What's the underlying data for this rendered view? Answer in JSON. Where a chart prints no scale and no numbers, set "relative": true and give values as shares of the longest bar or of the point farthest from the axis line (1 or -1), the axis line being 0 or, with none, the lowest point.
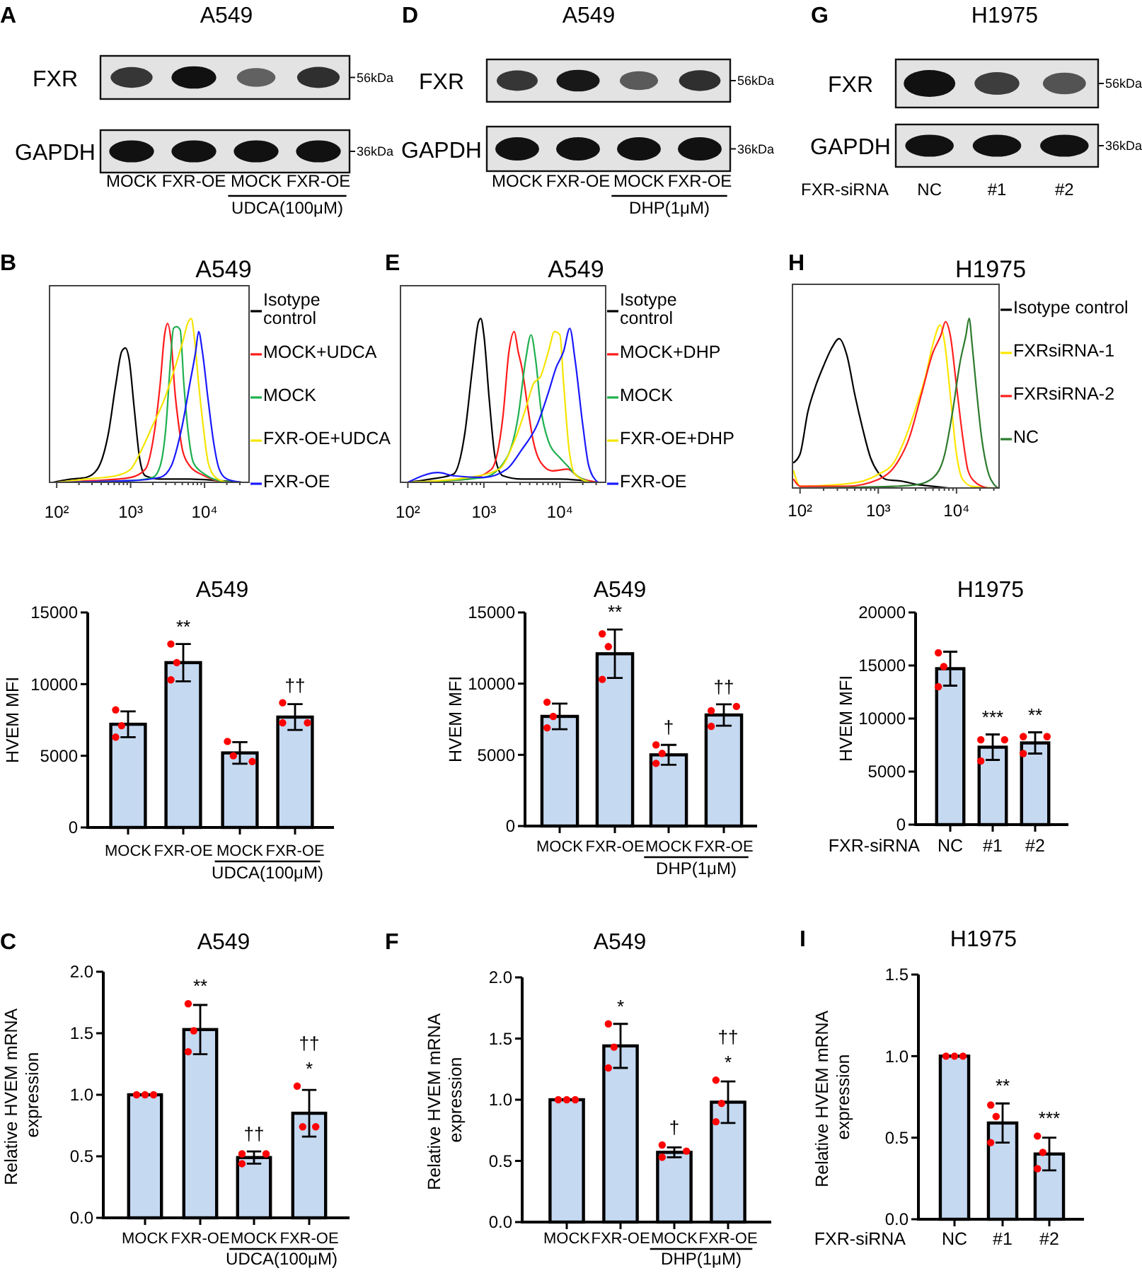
{
  "chart_data": [
    {
      "type": "other",
      "title": "A549",
      "categories": [
        "MOCK",
        "FXR-OE",
        "MOCK",
        "FXR-OE"
      ],
      "y_categories": [
        "FXR",
        "GAPDH"
      ],
      "y2_categories": [
        "56kDa",
        "36kDa"
      ],
      "annotations": [
        "A",
        "UDCA(100μM)"
      ]
    },
    {
      "type": "other",
      "title": "A549",
      "categories": [
        "MOCK",
        "FXR-OE",
        "MOCK",
        "FXR-OE"
      ],
      "y_categories": [
        "FXR",
        "GAPDH"
      ],
      "y2_categories": [
        "56kDa",
        "36kDa"
      ],
      "annotations": [
        "D",
        "DHP(1μM)"
      ]
    },
    {
      "type": "other",
      "title": "H1975",
      "xlabel": "FXR-siRNA",
      "categories": [
        "NC",
        "#1",
        "#2"
      ],
      "y_categories": [
        "FXR",
        "GAPDH"
      ],
      "y2_categories": [
        "56kDa",
        "36kDa"
      ],
      "annotations": [
        "G"
      ]
    },
    {
      "type": "line",
      "title": "A549",
      "relative": true,
      "log": "x",
      "xlim": [
        80,
        40000
      ],
      "xticks": [
        {
          "value": 100,
          "label": "10²"
        },
        {
          "value": 200,
          "label": null
        },
        {
          "value": 300,
          "label": null
        },
        {
          "value": 400,
          "label": null
        },
        {
          "value": 500,
          "label": null
        },
        {
          "value": 600,
          "label": null
        },
        {
          "value": 700,
          "label": null
        },
        {
          "value": 800,
          "label": null
        },
        {
          "value": 900,
          "label": null
        },
        {
          "value": 1000,
          "label": "10³"
        },
        {
          "value": 2000,
          "label": null
        },
        {
          "value": 3000,
          "label": null
        },
        {
          "value": 4000,
          "label": null
        },
        {
          "value": 5000,
          "label": null
        },
        {
          "value": 6000,
          "label": null
        },
        {
          "value": 7000,
          "label": null
        },
        {
          "value": 8000,
          "label": null
        },
        {
          "value": 9000,
          "label": null
        },
        {
          "value": 10000,
          "label": "10⁴"
        },
        {
          "value": 20000,
          "label": null
        },
        {
          "value": 30000,
          "label": null
        }
      ],
      "legend": "right",
      "annotations": [
        "B"
      ],
      "series": [
        {
          "name": "Isotype control",
          "color": "#000000",
          "x": [
            89,
            158,
            251,
            355,
            501,
            631,
            759,
            851,
            955,
            1120,
            1320,
            1580,
            2510,
            6310,
            15800,
            31600
          ],
          "values": [
            0,
            0.02,
            0.03,
            0.08,
            0.3,
            0.6,
            0.8,
            0.82,
            0.75,
            0.45,
            0.15,
            0.04,
            0.02,
            0.02,
            0.01,
            0
          ]
        },
        {
          "name": "MOCK+UDCA",
          "color": "#ff1a1a",
          "x": [
            100,
            316,
            1000,
            1580,
            2000,
            2510,
            2880,
            3160,
            3550,
            3980,
            4470,
            5010,
            6310,
            8910,
            12600,
            20000
          ],
          "values": [
            0,
            0.01,
            0.03,
            0.08,
            0.25,
            0.6,
            0.9,
            0.97,
            0.85,
            0.55,
            0.35,
            0.2,
            0.1,
            0.05,
            0.02,
            0
          ]
        },
        {
          "name": "MOCK",
          "color": "#1fb050",
          "x": [
            100,
            1000,
            2000,
            2510,
            3020,
            3470,
            3800,
            4170,
            4680,
            5250,
            6030,
            7080,
            10000,
            15800,
            25100
          ],
          "values": [
            0,
            0.01,
            0.03,
            0.1,
            0.35,
            0.75,
            0.94,
            0.95,
            0.93,
            0.6,
            0.3,
            0.12,
            0.05,
            0.01,
            0
          ]
        },
        {
          "name": "FXR-OE+UDCA",
          "color": "#f5e400",
          "x": [
            100,
            251,
            631,
            1000,
            1410,
            2000,
            2820,
            3980,
            5010,
            6030,
            6610,
            7410,
            8320,
            9550,
            11200,
            14100,
            20000
          ],
          "values": [
            0,
            0.02,
            0.04,
            0.08,
            0.2,
            0.35,
            0.5,
            0.7,
            0.85,
            0.98,
            1,
            0.85,
            0.6,
            0.35,
            0.12,
            0.03,
            0
          ]
        },
        {
          "name": "FXR-OE",
          "color": "#1a1aff",
          "x": [
            100,
            1000,
            2510,
            3550,
            4470,
            5010,
            6310,
            7590,
            8320,
            9330,
            11200,
            13200,
            15800,
            20000,
            31600
          ],
          "values": [
            0,
            0.01,
            0.03,
            0.1,
            0.25,
            0.35,
            0.6,
            0.8,
            0.92,
            0.8,
            0.5,
            0.25,
            0.08,
            0.02,
            0
          ]
        }
      ]
    },
    {
      "type": "line",
      "title": "A549",
      "relative": true,
      "log": "x",
      "xlim": [
        80,
        40000
      ],
      "xticks": [
        {
          "value": 100,
          "label": "10²"
        },
        {
          "value": 200,
          "label": null
        },
        {
          "value": 300,
          "label": null
        },
        {
          "value": 400,
          "label": null
        },
        {
          "value": 500,
          "label": null
        },
        {
          "value": 600,
          "label": null
        },
        {
          "value": 700,
          "label": null
        },
        {
          "value": 800,
          "label": null
        },
        {
          "value": 900,
          "label": null
        },
        {
          "value": 1000,
          "label": "10³"
        },
        {
          "value": 2000,
          "label": null
        },
        {
          "value": 3000,
          "label": null
        },
        {
          "value": 4000,
          "label": null
        },
        {
          "value": 5000,
          "label": null
        },
        {
          "value": 6000,
          "label": null
        },
        {
          "value": 7000,
          "label": null
        },
        {
          "value": 8000,
          "label": null
        },
        {
          "value": 9000,
          "label": null
        },
        {
          "value": 10000,
          "label": "10⁴"
        },
        {
          "value": 20000,
          "label": null
        },
        {
          "value": 30000,
          "label": null
        }
      ],
      "legend": "right",
      "annotations": [
        "E"
      ],
      "series": [
        {
          "name": "Isotype control",
          "color": "#000000",
          "x": [
            100,
            200,
            398,
            562,
            708,
            851,
            912,
            1000,
            1180,
            1410,
            1780,
            3160,
            10000,
            31600
          ],
          "values": [
            0,
            0.02,
            0.05,
            0.3,
            0.7,
            0.98,
            1,
            0.9,
            0.5,
            0.15,
            0.04,
            0.02,
            0.02,
            0
          ]
        },
        {
          "name": "MOCK+DHP",
          "color": "#ff1a1a",
          "x": [
            100,
            631,
            1260,
            1780,
            2140,
            2510,
            2820,
            3160,
            3800,
            4470,
            5620,
            7940,
            12600,
            17800,
            31600
          ],
          "values": [
            0,
            0.02,
            0.08,
            0.4,
            0.8,
            0.92,
            0.8,
            0.7,
            0.45,
            0.25,
            0.12,
            0.07,
            0.08,
            0.03,
            0
          ]
        },
        {
          "name": "MOCK",
          "color": "#1fb050",
          "x": [
            100,
            1000,
            2000,
            2820,
            3550,
            4170,
            4790,
            5620,
            7080,
            10000,
            12600,
            15800,
            25100
          ],
          "values": [
            0,
            0.03,
            0.15,
            0.4,
            0.75,
            0.9,
            0.75,
            0.45,
            0.25,
            0.15,
            0.1,
            0.05,
            0
          ]
        },
        {
          "name": "FXR-OE+DHP",
          "color": "#f5e400",
          "x": [
            100,
            631,
            1580,
            2510,
            3550,
            4470,
            5620,
            7080,
            8510,
            10000,
            11200,
            13200,
            15800,
            25100
          ],
          "values": [
            0,
            0.03,
            0.08,
            0.25,
            0.45,
            0.6,
            0.65,
            0.8,
            0.92,
            0.9,
            0.6,
            0.2,
            0.05,
            0
          ]
        },
        {
          "name": "FXR-OE",
          "color": "#1a1aff",
          "x": [
            100,
            251,
            398,
            1000,
            2000,
            3160,
            5010,
            7080,
            8910,
            11200,
            13500,
            15800,
            20000,
            24000,
            31600
          ],
          "values": [
            0,
            0.06,
            0.04,
            0.03,
            0.08,
            0.2,
            0.35,
            0.55,
            0.7,
            0.8,
            0.94,
            0.75,
            0.35,
            0.1,
            0
          ]
        }
      ]
    },
    {
      "type": "line",
      "title": "H1975",
      "relative": true,
      "log": "x",
      "xlim": [
        80,
        35000
      ],
      "xticks": [
        {
          "value": 100,
          "label": "10²"
        },
        {
          "value": 200,
          "label": null
        },
        {
          "value": 300,
          "label": null
        },
        {
          "value": 400,
          "label": null
        },
        {
          "value": 500,
          "label": null
        },
        {
          "value": 600,
          "label": null
        },
        {
          "value": 700,
          "label": null
        },
        {
          "value": 800,
          "label": null
        },
        {
          "value": 900,
          "label": null
        },
        {
          "value": 1000,
          "label": "10³"
        },
        {
          "value": 2000,
          "label": null
        },
        {
          "value": 3000,
          "label": null
        },
        {
          "value": 4000,
          "label": null
        },
        {
          "value": 5000,
          "label": null
        },
        {
          "value": 6000,
          "label": null
        },
        {
          "value": 7000,
          "label": null
        },
        {
          "value": 8000,
          "label": null
        },
        {
          "value": 9000,
          "label": null
        },
        {
          "value": 10000,
          "label": "10⁴"
        },
        {
          "value": 20000,
          "label": null
        },
        {
          "value": 30000,
          "label": null
        }
      ],
      "legend": "right",
      "annotations": [
        "H"
      ],
      "series": [
        {
          "name": "Isotype control",
          "color": "#000000",
          "x": [
            83,
            100,
            126,
            158,
            200,
            251,
            316,
            398,
            501,
            631,
            794,
            1000,
            1260,
            2000,
            3160,
            5010,
            7940
          ],
          "values": [
            0.15,
            0.2,
            0.45,
            0.6,
            0.72,
            0.82,
            0.88,
            0.78,
            0.55,
            0.35,
            0.18,
            0.09,
            0.05,
            0.04,
            0.02,
            0.01,
            0
          ]
        },
        {
          "name": "FXRsiRNA-1",
          "color": "#ffe600",
          "x": [
            83,
            100,
            316,
            631,
            1000,
            1580,
            2240,
            3160,
            3980,
            5010,
            6170,
            7080,
            8320,
            10000,
            12000,
            15800,
            31600
          ],
          "values": [
            0.1,
            0.01,
            0.02,
            0.04,
            0.08,
            0.15,
            0.3,
            0.5,
            0.65,
            0.85,
            0.96,
            0.85,
            0.55,
            0.2,
            0.05,
            0.01,
            0
          ]
        },
        {
          "name": "FXRsiRNA-2",
          "color": "#ff2020",
          "x": [
            83,
            100,
            398,
            1000,
            1580,
            2510,
            3550,
            5010,
            6310,
            7240,
            8320,
            10000,
            12000,
            14100,
            17800,
            25100
          ],
          "values": [
            0.05,
            0.01,
            0.01,
            0.05,
            0.12,
            0.3,
            0.55,
            0.8,
            0.9,
            0.98,
            0.9,
            0.6,
            0.3,
            0.1,
            0.03,
            0
          ]
        },
        {
          "name": "NC",
          "color": "#2d7a2d",
          "x": [
            100,
            1580,
            3160,
            5010,
            7080,
            8910,
            11200,
            13200,
            14500,
            15800,
            17800,
            20900,
            25100,
            30200,
            33900
          ],
          "values": [
            0,
            0.01,
            0.02,
            0.06,
            0.2,
            0.45,
            0.75,
            0.9,
            1,
            0.85,
            0.6,
            0.3,
            0.1,
            0.02,
            0
          ]
        }
      ]
    },
    {
      "type": "bar",
      "title": "A549",
      "ylabel": "HVEM MFI",
      "categories": [
        "MOCK",
        "FXR-OE",
        "MOCK",
        "FXR-OE"
      ],
      "ylim": [
        0,
        15000
      ],
      "yticks": [
        0,
        5000,
        10000,
        15000
      ],
      "annotations": [
        "**",
        "††",
        "UDCA(100μM)"
      ],
      "series": [
        {
          "color": "#c5d9f1",
          "values": [
            7200,
            11500,
            5200,
            7700
          ],
          "errors": [
            900,
            1300,
            750,
            900
          ]
        },
        {
          "type": "scatter",
          "color": "#ff0000",
          "marker": "circle",
          "values": [
            8200,
            12800,
            6000,
            8700
          ]
        },
        {
          "type": "scatter",
          "color": "#ff0000",
          "marker": "circle",
          "values": [
            7100,
            11500,
            5000,
            7300
          ]
        },
        {
          "type": "scatter",
          "color": "#ff0000",
          "marker": "circle",
          "values": [
            6300,
            10300,
            4600,
            7300
          ]
        }
      ]
    },
    {
      "type": "bar",
      "title": "A549",
      "ylabel": "HVEM MFI",
      "categories": [
        "MOCK",
        "FXR-OE",
        "MOCK",
        "FXR-OE"
      ],
      "ylim": [
        0,
        15000
      ],
      "yticks": [
        0,
        5000,
        10000,
        15000
      ],
      "annotations": [
        "**",
        "†",
        "††",
        "DHP(1μM)"
      ],
      "series": [
        {
          "color": "#c5d9f1",
          "values": [
            7700,
            12100,
            5000,
            7800
          ],
          "errors": [
            900,
            1700,
            700,
            750
          ]
        },
        {
          "type": "scatter",
          "color": "#ff0000",
          "marker": "circle",
          "values": [
            8700,
            13500,
            5700,
            8100
          ]
        },
        {
          "type": "scatter",
          "color": "#ff0000",
          "marker": "circle",
          "values": [
            7700,
            12600,
            5100,
            8400
          ]
        },
        {
          "type": "scatter",
          "color": "#ff0000",
          "marker": "circle",
          "values": [
            6900,
            10300,
            4400,
            7000
          ]
        }
      ]
    },
    {
      "type": "bar",
      "title": "H1975",
      "ylabel": "HVEM MFI",
      "xlabel": "FXR-siRNA",
      "categories": [
        "NC",
        "#1",
        "#2"
      ],
      "ylim": [
        0,
        20000
      ],
      "yticks": [
        0,
        5000,
        10000,
        15000,
        20000
      ],
      "annotations": [
        "***",
        "**"
      ],
      "series": [
        {
          "color": "#c5d9f1",
          "values": [
            14700,
            7300,
            7700
          ],
          "errors": [
            1600,
            1200,
            1000
          ]
        },
        {
          "type": "scatter",
          "color": "#ff0000",
          "marker": "circle",
          "values": [
            16200,
            8000,
            8300
          ]
        },
        {
          "type": "scatter",
          "color": "#ff0000",
          "marker": "circle",
          "values": [
            14900,
            8000,
            8300
          ]
        },
        {
          "type": "scatter",
          "color": "#ff0000",
          "marker": "circle",
          "values": [
            13000,
            6000,
            6700
          ]
        }
      ]
    },
    {
      "type": "bar",
      "title": "A549",
      "ylabel": "Relative HVEM mRNA expression",
      "categories": [
        "MOCK",
        "FXR-OE",
        "MOCK",
        "FXR-OE"
      ],
      "ylim": [
        0,
        2
      ],
      "yticks": [
        {
          "value": 0,
          "label": "0.0"
        },
        {
          "value": 0.5,
          "label": "0.5"
        },
        {
          "value": 1,
          "label": "1.0"
        },
        {
          "value": 1.5,
          "label": "1.5"
        },
        {
          "value": 2,
          "label": "2.0"
        }
      ],
      "annotations": [
        "C",
        "**",
        "††",
        "††",
        "*",
        "UDCA(100μM)"
      ],
      "series": [
        {
          "color": "#c5d9f1",
          "values": [
            1,
            1.53,
            0.49,
            0.85
          ],
          "errors": [
            null,
            0.2,
            0.05,
            0.19
          ]
        },
        {
          "type": "scatter",
          "color": "#ff0000",
          "marker": "circle",
          "values": [
            1,
            1.74,
            0.52,
            1.07
          ]
        },
        {
          "type": "scatter",
          "color": "#ff0000",
          "marker": "circle",
          "values": [
            1,
            1.52,
            0.44,
            0.74
          ]
        },
        {
          "type": "scatter",
          "color": "#ff0000",
          "marker": "circle",
          "values": [
            1,
            1.35,
            0.52,
            0.74
          ]
        }
      ]
    },
    {
      "type": "bar",
      "title": "A549",
      "ylabel": "Relative HVEM mRNA expression",
      "categories": [
        "MOCK",
        "FXR-OE",
        "MOCK",
        "FXR-OE"
      ],
      "ylim": [
        0,
        2
      ],
      "yticks": [
        {
          "value": 0,
          "label": "0.0"
        },
        {
          "value": 0.5,
          "label": "0.5"
        },
        {
          "value": 1,
          "label": "1.0"
        },
        {
          "value": 1.5,
          "label": "1.5"
        },
        {
          "value": 2,
          "label": "2.0"
        }
      ],
      "annotations": [
        "F",
        "*",
        "†",
        "††",
        "*",
        "DHP(1μM)"
      ],
      "series": [
        {
          "color": "#c5d9f1",
          "values": [
            1,
            1.44,
            0.57,
            0.98
          ],
          "errors": [
            null,
            0.18,
            0.04,
            0.17
          ]
        },
        {
          "type": "scatter",
          "color": "#ff0000",
          "marker": "circle",
          "values": [
            1,
            1.62,
            0.53,
            1.16
          ]
        },
        {
          "type": "scatter",
          "color": "#ff0000",
          "marker": "circle",
          "values": [
            1,
            1.43,
            0.63,
            0.97
          ]
        },
        {
          "type": "scatter",
          "color": "#ff0000",
          "marker": "circle",
          "values": [
            1,
            1.26,
            0.58,
            0.82
          ]
        }
      ]
    },
    {
      "type": "bar",
      "title": "H1975",
      "ylabel": "Relative HVEM mRNA expression",
      "xlabel": "FXR-siRNA",
      "categories": [
        "NC",
        "#1",
        "#2"
      ],
      "ylim": [
        0,
        1.5
      ],
      "yticks": [
        {
          "value": 0,
          "label": "0.0"
        },
        {
          "value": 0.5,
          "label": "0.5"
        },
        {
          "value": 1,
          "label": "1.0"
        },
        {
          "value": 1.5,
          "label": "1.5"
        }
      ],
      "annotations": [
        "I",
        "**",
        "***"
      ],
      "series": [
        {
          "color": "#c5d9f1",
          "values": [
            1,
            0.59,
            0.4
          ],
          "errors": [
            null,
            0.12,
            0.1
          ]
        },
        {
          "type": "scatter",
          "color": "#ff0000",
          "marker": "circle",
          "values": [
            1,
            0.7,
            0.51
          ]
        },
        {
          "type": "scatter",
          "color": "#ff0000",
          "marker": "circle",
          "values": [
            1,
            0.63,
            0.41
          ]
        },
        {
          "type": "scatter",
          "color": "#ff0000",
          "marker": "circle",
          "values": [
            1,
            0.47,
            0.31
          ]
        }
      ]
    }
  ]
}
